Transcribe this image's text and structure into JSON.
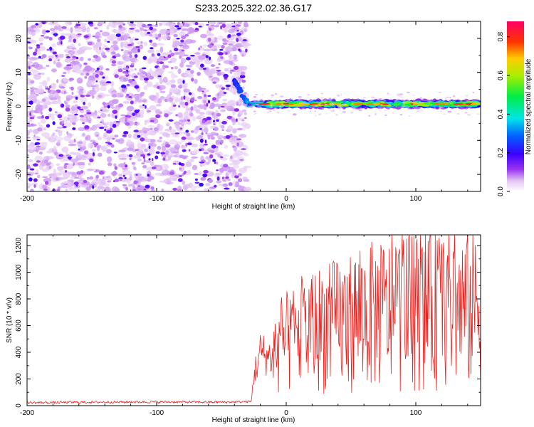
{
  "colors": {
    "snr_line": "#e8231f",
    "background": "#ffffff",
    "frame": "#000000"
  },
  "chart_data": [
    {
      "type": "heatmap",
      "title": "S233.2025.322.02.36.G17",
      "xlabel": "Height of straight line (km)",
      "ylabel": "Frequency (Hz)",
      "xlim": [
        -200,
        150
      ],
      "ylim": [
        -25,
        25
      ],
      "xticks": [
        "-200",
        "-100",
        "0",
        "100"
      ],
      "yticks": [
        "-20",
        "-10",
        "0",
        "10",
        "20"
      ],
      "colorbar": {
        "label": "Normalized spectral amplitude",
        "range": [
          0.0,
          0.88
        ],
        "ticks": [
          "0.0",
          "0.2",
          "0.4",
          "0.6",
          "0.8"
        ],
        "colormap": "rainbow (white-violet-blue-cyan-green-yellow-red-magenta)"
      },
      "regions": [
        {
          "name": "noise",
          "x_range": [
            -200,
            -33
          ],
          "freq_range": [
            -25,
            25
          ],
          "amplitude": [
            0.0,
            0.1
          ]
        },
        {
          "name": "transition",
          "x_range": [
            -40,
            -28
          ],
          "freq_start": 8,
          "freq_end": 0
        },
        {
          "name": "carrier",
          "x_range": [
            -28,
            150
          ],
          "freq_center": 0.7,
          "amplitude_peak": 0.85
        }
      ]
    },
    {
      "type": "line",
      "xlabel": "Height of straight line (km)",
      "ylabel": "SNR (10 * v/v)",
      "xlim": [
        -200,
        150
      ],
      "ylim": [
        0,
        1280
      ],
      "xticks": [
        "-200",
        "-100",
        "0",
        "100"
      ],
      "yticks": [
        "0",
        "200",
        "400",
        "600",
        "800",
        "1000",
        "1200"
      ],
      "series": [
        {
          "name": "SNR",
          "x_range": [
            -200,
            150
          ],
          "step": 0.5,
          "profile_x": [
            -200,
            -150,
            -100,
            -50,
            -27,
            -25,
            -20,
            -10,
            0,
            20,
            40,
            60,
            80,
            100,
            120,
            150
          ],
          "profile_y": [
            22,
            26,
            28,
            26,
            30,
            250,
            430,
            380,
            460,
            560,
            600,
            660,
            680,
            700,
            720,
            700
          ]
        }
      ]
    }
  ]
}
